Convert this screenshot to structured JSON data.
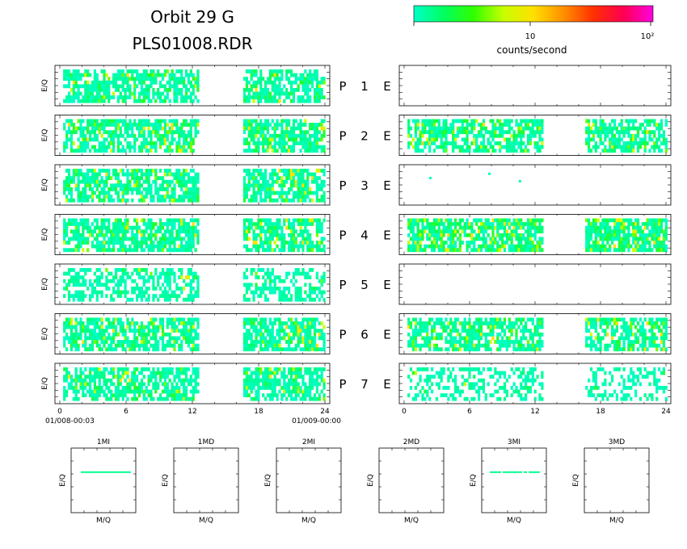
{
  "header": {
    "title": "Orbit 29 G",
    "subtitle": "PLS01008.RDR"
  },
  "colorbar": {
    "label": "counts/second",
    "ticks": [
      "10",
      "10²"
    ],
    "stops": [
      "#00ffc8",
      "#00ff60",
      "#30ff00",
      "#c8ff00",
      "#ffe000",
      "#ff9000",
      "#ff3000",
      "#ff0050",
      "#ff00e0"
    ]
  },
  "chart_data": {
    "type": "heatmap",
    "ylabel": "E/Q",
    "x_ticks": [
      "0",
      "6",
      "12",
      "18",
      "24"
    ],
    "x_range": [
      0,
      24
    ],
    "time_labels": {
      "start": "01/008-00:03",
      "end": "01/009-00:00"
    },
    "channels": [
      {
        "label": "P",
        "num": "1",
        "side": "E",
        "left": {
          "segments": [
            [
              0.3,
              12.6
            ],
            [
              16.6,
              24
            ]
          ],
          "level": 0.18,
          "density": 0.72
        },
        "right": {
          "segments": [],
          "level": 0,
          "density": 0
        }
      },
      {
        "label": "P",
        "num": "2",
        "side": "E",
        "left": {
          "segments": [
            [
              0.3,
              12.6
            ],
            [
              16.6,
              24
            ]
          ],
          "level": 0.22,
          "density": 0.72
        },
        "right": {
          "segments": [
            [
              0.3,
              12.6
            ],
            [
              16.6,
              24
            ]
          ],
          "level": 0.25,
          "density": 0.7
        }
      },
      {
        "label": "P",
        "num": "3",
        "side": "E",
        "left": {
          "segments": [
            [
              0.3,
              12.6
            ],
            [
              16.6,
              24
            ]
          ],
          "level": 0.2,
          "density": 0.72
        },
        "right": {
          "segments": [],
          "level": 0,
          "density": 0,
          "points": [
            [
              2.3,
              0.25
            ],
            [
              7.7,
              0.12
            ],
            [
              10.5,
              0.35
            ]
          ]
        }
      },
      {
        "label": "P",
        "num": "4",
        "side": "E",
        "left": {
          "segments": [
            [
              0.3,
              12.6
            ],
            [
              16.6,
              24
            ]
          ],
          "level": 0.22,
          "density": 0.72
        },
        "right": {
          "segments": [
            [
              0.3,
              12.6
            ],
            [
              16.6,
              24
            ]
          ],
          "level": 0.35,
          "density": 0.78
        }
      },
      {
        "label": "P",
        "num": "5",
        "side": "E",
        "left": {
          "segments": [
            [
              0.3,
              12.6
            ],
            [
              16.6,
              24
            ]
          ],
          "level": 0.05,
          "density": 0.5
        },
        "right": {
          "segments": [],
          "level": 0,
          "density": 0
        }
      },
      {
        "label": "P",
        "num": "6",
        "side": "E",
        "left": {
          "segments": [
            [
              0.3,
              12.6
            ],
            [
              16.6,
              24
            ]
          ],
          "level": 0.2,
          "density": 0.72
        },
        "right": {
          "segments": [
            [
              0.3,
              12.6
            ],
            [
              16.6,
              24
            ]
          ],
          "level": 0.25,
          "density": 0.68
        }
      },
      {
        "label": "P",
        "num": "7",
        "side": "E",
        "left": {
          "segments": [
            [
              0.3,
              12.6
            ],
            [
              16.6,
              24
            ]
          ],
          "level": 0.15,
          "density": 0.68
        },
        "right": {
          "segments": [
            [
              0.3,
              12.6
            ],
            [
              16.6,
              24
            ]
          ],
          "level": 0.03,
          "density": 0.35
        }
      }
    ],
    "mq_panels": [
      {
        "title": "1MI",
        "xlabel": "M/Q",
        "ylabel": "E/Q",
        "has_data": true
      },
      {
        "title": "1MD",
        "xlabel": "M/Q",
        "ylabel": "E/Q",
        "has_data": false
      },
      {
        "title": "2MI",
        "xlabel": "M/Q",
        "ylabel": "E/Q",
        "has_data": false
      },
      {
        "title": "2MD",
        "xlabel": "M/Q",
        "ylabel": "E/Q",
        "has_data": false
      },
      {
        "title": "3MI",
        "xlabel": "M/Q",
        "ylabel": "E/Q",
        "has_data": true
      },
      {
        "title": "3MD",
        "xlabel": "M/Q",
        "ylabel": "E/Q",
        "has_data": false
      }
    ]
  }
}
